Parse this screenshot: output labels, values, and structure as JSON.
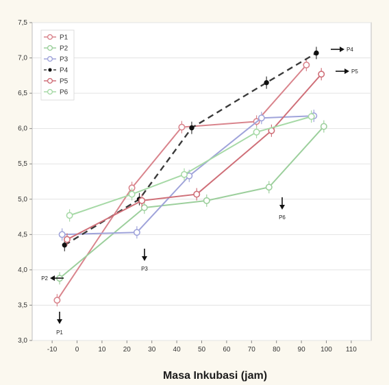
{
  "chart_data": {
    "type": "line",
    "title": "",
    "xlabel": "Masa Inkubasi (jam)",
    "ylabel": "",
    "xlim": [
      -18,
      118
    ],
    "ylim": [
      3.0,
      7.5
    ],
    "x_ticks": [
      -10,
      0,
      10,
      20,
      30,
      40,
      50,
      60,
      70,
      80,
      90,
      100,
      110
    ],
    "y_ticks": [
      3.0,
      3.5,
      4.0,
      4.5,
      5.0,
      5.5,
      6.0,
      6.5,
      7.0,
      7.5
    ],
    "y_tick_labels": [
      "3,0",
      "3,5",
      "4,0",
      "4,5",
      "5,0",
      "5,5",
      "6,0",
      "6,5",
      "7,0",
      "7,5"
    ],
    "grid": true,
    "legend_position": "top-left",
    "series": [
      {
        "name": "P1",
        "color": "#d9848c",
        "dash": "solid",
        "marker": "circle",
        "x": [
          -8,
          22,
          42,
          72,
          92
        ],
        "y": [
          3.57,
          5.16,
          6.02,
          6.1,
          6.9
        ]
      },
      {
        "name": "P2",
        "color": "#9ccf9c",
        "dash": "solid",
        "marker": "circle",
        "x": [
          -7,
          27,
          52,
          77,
          99
        ],
        "y": [
          3.88,
          4.88,
          4.98,
          5.17,
          6.03
        ]
      },
      {
        "name": "P3",
        "color": "#9fa3da",
        "dash": "solid",
        "marker": "circle",
        "x": [
          -6,
          24,
          45,
          74,
          95
        ],
        "y": [
          4.5,
          4.53,
          5.33,
          6.15,
          6.18
        ]
      },
      {
        "name": "P4",
        "color": "#3a3a3a",
        "dash": "dashed",
        "marker": "dot",
        "x": [
          -5,
          25,
          46,
          76,
          96
        ],
        "y": [
          4.35,
          5.0,
          6.01,
          6.65,
          7.07
        ]
      },
      {
        "name": "P5",
        "color": "#cf6f78",
        "dash": "solid",
        "marker": "circle",
        "x": [
          -4,
          26,
          48,
          78,
          98
        ],
        "y": [
          4.43,
          4.98,
          5.07,
          5.97,
          6.77
        ]
      },
      {
        "name": "P6",
        "color": "#a6d9a6",
        "dash": "solid",
        "marker": "circle",
        "x": [
          -3,
          22,
          43,
          72,
          94
        ],
        "y": [
          4.77,
          5.07,
          5.35,
          5.95,
          6.17
        ]
      }
    ],
    "annotations": [
      "P1",
      "P2",
      "P3",
      "P4",
      "P5",
      "P6"
    ]
  }
}
